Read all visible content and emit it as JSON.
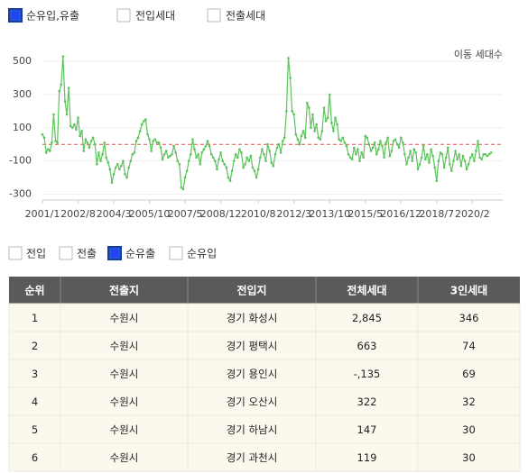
{
  "chart_data": {
    "type": "line",
    "y_axis_label": "이동 세대수",
    "categories": [
      "2001/1",
      null,
      null,
      null,
      null,
      null,
      null,
      null,
      null,
      null,
      null,
      null,
      null,
      null,
      null,
      null,
      null,
      null,
      null,
      "2002/8",
      null,
      null,
      null,
      null,
      null,
      null,
      null,
      null,
      null,
      null,
      null,
      null,
      null,
      null,
      null,
      null,
      null,
      null,
      "2004/3",
      null,
      null,
      null,
      null,
      null,
      null,
      null,
      null,
      null,
      null,
      null,
      null,
      null,
      null,
      null,
      null,
      null,
      null,
      "2005/10",
      null,
      null,
      null,
      null,
      null,
      null,
      null,
      null,
      null,
      null,
      null,
      null,
      null,
      null,
      null,
      null,
      null,
      null,
      "2007/5",
      null,
      null,
      null,
      null,
      null,
      null,
      null,
      null,
      null,
      null,
      null,
      null,
      null,
      null,
      null,
      null,
      null,
      null,
      "2008/12",
      null,
      null,
      null,
      null,
      null,
      null,
      null,
      null,
      null,
      null,
      null,
      null,
      null,
      null,
      null,
      null,
      null,
      null,
      null,
      "2010/8",
      null,
      null,
      null,
      null,
      null,
      null,
      null,
      null,
      null,
      null,
      null,
      null,
      null,
      null,
      null,
      null,
      null,
      null,
      "2012/3",
      null,
      null,
      null,
      null,
      null,
      null,
      null,
      null,
      null,
      null,
      null,
      null,
      null,
      null,
      null,
      null,
      null,
      null,
      "2013/10",
      null,
      null,
      null,
      null,
      null,
      null,
      null,
      null,
      null,
      null,
      null,
      null,
      null,
      null,
      null,
      null,
      null,
      null,
      "2015/5",
      null,
      null,
      null,
      null,
      null,
      null,
      null,
      null,
      null,
      null,
      null,
      null,
      null,
      null,
      null,
      null,
      null,
      null,
      "2016/12",
      null,
      null,
      null,
      null,
      null,
      null,
      null,
      null,
      null,
      null,
      null,
      null,
      null,
      null,
      null,
      null,
      null,
      null,
      "2018/7",
      null,
      null,
      null,
      null,
      null,
      null,
      null,
      null,
      null,
      null,
      null,
      null,
      null,
      null,
      null,
      null,
      null,
      null,
      "2020/2",
      null,
      null,
      null,
      null,
      null,
      null,
      null,
      null,
      null,
      null
    ],
    "series": [
      {
        "name": "순유입,유출",
        "color": "#5cc35c",
        "values": [
          60,
          40,
          -50,
          -30,
          -40,
          10,
          180,
          20,
          10,
          320,
          360,
          530,
          260,
          180,
          340,
          110,
          100,
          120,
          90,
          160,
          50,
          80,
          -40,
          30,
          10,
          -20,
          20,
          40,
          0,
          -120,
          -50,
          -100,
          -60,
          10,
          -80,
          -110,
          -150,
          -230,
          -180,
          -140,
          -120,
          -150,
          -130,
          -100,
          -180,
          -200,
          -140,
          -100,
          -60,
          -50,
          20,
          40,
          80,
          120,
          140,
          150,
          60,
          30,
          -40,
          20,
          30,
          10,
          10,
          -20,
          -90,
          -60,
          -40,
          -80,
          -70,
          -60,
          -10,
          -50,
          -100,
          -120,
          -260,
          -270,
          -200,
          -160,
          -100,
          -60,
          30,
          -30,
          -80,
          -60,
          -120,
          -50,
          -30,
          -10,
          20,
          -10,
          -60,
          -80,
          -100,
          -150,
          -90,
          -50,
          -100,
          -120,
          -140,
          -200,
          -220,
          -160,
          -100,
          -60,
          -80,
          -30,
          -50,
          -140,
          -120,
          -80,
          -100,
          -70,
          -140,
          -160,
          -200,
          -150,
          -80,
          -30,
          -60,
          -100,
          0,
          -40,
          -110,
          -130,
          -60,
          -20,
          0,
          -50,
          20,
          40,
          200,
          520,
          400,
          200,
          180,
          60,
          30,
          0,
          50,
          80,
          40,
          250,
          220,
          100,
          180,
          80,
          120,
          40,
          30,
          80,
          220,
          140,
          160,
          300,
          130,
          80,
          160,
          120,
          30,
          20,
          40,
          10,
          -10,
          -60,
          -80,
          -90,
          -20,
          -60,
          -30,
          -100,
          -50,
          -80,
          50,
          40,
          0,
          -40,
          -20,
          10,
          -60,
          -30,
          20,
          -10,
          -80,
          10,
          40,
          -70,
          -40,
          20,
          30,
          0,
          -20,
          40,
          10,
          -60,
          -120,
          -80,
          -40,
          -100,
          -30,
          -50,
          -150,
          -120,
          -80,
          -10,
          -90,
          -60,
          -110,
          -30,
          -70,
          -140,
          -220,
          -100,
          -50,
          -60,
          -140,
          -80,
          -20,
          -120,
          -160,
          -100,
          -40,
          -90,
          -60,
          -130,
          -70,
          -100,
          -150,
          -120,
          -80,
          -60,
          -100,
          -40,
          20,
          -80,
          -90,
          -60,
          -60,
          -70,
          -60,
          -50
        ]
      }
    ],
    "other_series_toggles": [
      "전입세대",
      "전출세대"
    ],
    "baseline": 0,
    "baseline_color": "#e05555",
    "ylim": [
      -330,
      560
    ],
    "yticks": [
      -300,
      -100,
      100,
      300,
      500
    ],
    "grid": true
  },
  "filter_toggles": [
    {
      "label": "전입",
      "checked": false
    },
    {
      "label": "전출",
      "checked": false
    },
    {
      "label": "순유출",
      "checked": true
    },
    {
      "label": "순유입",
      "checked": false
    }
  ],
  "table": {
    "headers": [
      "순위",
      "전출지",
      "전입지",
      "전체세대",
      "3인세대"
    ],
    "rows": [
      [
        "1",
        "수원시",
        "경기 화성시",
        "2,845",
        "346"
      ],
      [
        "2",
        "수원시",
        "경기 평택시",
        "663",
        "74"
      ],
      [
        "3",
        "수원시",
        "경기 용인시",
        "-,135",
        "69"
      ],
      [
        "4",
        "수원시",
        "경기 오산시",
        "322",
        "32"
      ],
      [
        "5",
        "수원시",
        "경기 하남시",
        "147",
        "30"
      ],
      [
        "6",
        "수원시",
        "경기 과천시",
        "119",
        "30"
      ]
    ]
  }
}
